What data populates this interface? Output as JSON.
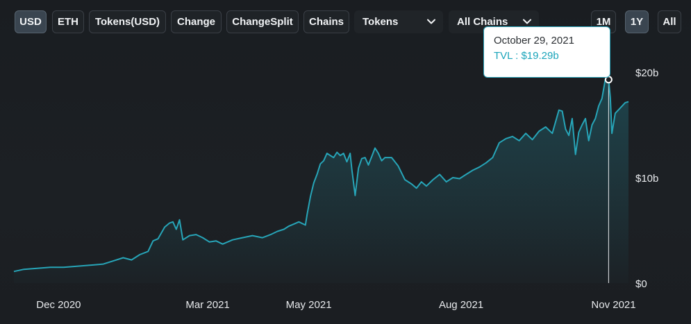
{
  "toolbar": {
    "buttons": [
      {
        "label": "USD",
        "active": true
      },
      {
        "label": "ETH",
        "active": false
      },
      {
        "label": "Tokens(USD)",
        "active": false
      },
      {
        "label": "Change",
        "active": false
      },
      {
        "label": "ChangeSplit",
        "active": false
      },
      {
        "label": "Chains",
        "active": false
      }
    ],
    "tokens_select": "Tokens",
    "chains_select": "All Chains",
    "range_buttons": [
      {
        "label": "1M",
        "active": false
      },
      {
        "label": "1Y",
        "active": true
      },
      {
        "label": "All",
        "active": false
      }
    ]
  },
  "tooltip": {
    "date": "October 29, 2021",
    "value": "TVL : $19.29b"
  },
  "colors": {
    "line": "#27a5b8",
    "accent": "#1aa4ba",
    "background": "#1b1e22"
  },
  "chart_data": {
    "type": "area",
    "title": "",
    "xlabel": "",
    "ylabel": "",
    "unit": "b",
    "ylim": [
      0,
      20
    ],
    "y_ticks": [
      {
        "value": 0,
        "label": "$0"
      },
      {
        "value": 10,
        "label": "$10b"
      },
      {
        "value": 20,
        "label": "$20b"
      }
    ],
    "x_ticks": [
      {
        "date": "2020-12-01",
        "label": "Dec 2020"
      },
      {
        "date": "2021-03-01",
        "label": "Mar 2021"
      },
      {
        "date": "2021-05-01",
        "label": "May 2021"
      },
      {
        "date": "2021-08-01",
        "label": "Aug 2021"
      },
      {
        "date": "2021-11-01",
        "label": "Nov 2021"
      }
    ],
    "grid": false,
    "highlight": {
      "date": "2021-10-29",
      "value": 19.29
    },
    "series": [
      {
        "values": [
          [
            "2020-11-04",
            1.1
          ],
          [
            "2020-11-10",
            1.3
          ],
          [
            "2020-11-18",
            1.4
          ],
          [
            "2020-11-26",
            1.5
          ],
          [
            "2020-12-04",
            1.5
          ],
          [
            "2020-12-12",
            1.6
          ],
          [
            "2020-12-20",
            1.7
          ],
          [
            "2020-12-28",
            1.8
          ],
          [
            "2021-01-03",
            2.1
          ],
          [
            "2021-01-09",
            2.4
          ],
          [
            "2021-01-14",
            2.2
          ],
          [
            "2021-01-19",
            2.7
          ],
          [
            "2021-01-24",
            3.0
          ],
          [
            "2021-01-27",
            4.0
          ],
          [
            "2021-01-30",
            4.2
          ],
          [
            "2021-02-03",
            5.3
          ],
          [
            "2021-02-06",
            5.7
          ],
          [
            "2021-02-08",
            5.8
          ],
          [
            "2021-02-10",
            5.1
          ],
          [
            "2021-02-12",
            6.0
          ],
          [
            "2021-02-14",
            4.1
          ],
          [
            "2021-02-18",
            4.5
          ],
          [
            "2021-02-22",
            4.6
          ],
          [
            "2021-02-26",
            4.3
          ],
          [
            "2021-03-02",
            3.9
          ],
          [
            "2021-03-06",
            4.0
          ],
          [
            "2021-03-10",
            3.7
          ],
          [
            "2021-03-16",
            4.1
          ],
          [
            "2021-03-22",
            4.3
          ],
          [
            "2021-03-28",
            4.5
          ],
          [
            "2021-04-03",
            4.3
          ],
          [
            "2021-04-08",
            4.6
          ],
          [
            "2021-04-12",
            4.9
          ],
          [
            "2021-04-16",
            5.1
          ],
          [
            "2021-04-19",
            5.4
          ],
          [
            "2021-04-22",
            5.6
          ],
          [
            "2021-04-25",
            5.8
          ],
          [
            "2021-04-29",
            5.5
          ],
          [
            "2021-04-30",
            6.5
          ],
          [
            "2021-05-02",
            8.2
          ],
          [
            "2021-05-04",
            9.5
          ],
          [
            "2021-05-06",
            10.3
          ],
          [
            "2021-05-08",
            11.3
          ],
          [
            "2021-05-10",
            11.6
          ],
          [
            "2021-05-12",
            12.3
          ],
          [
            "2021-05-14",
            12.1
          ],
          [
            "2021-05-16",
            11.9
          ],
          [
            "2021-05-18",
            12.4
          ],
          [
            "2021-05-20",
            12.1
          ],
          [
            "2021-05-22",
            12.3
          ],
          [
            "2021-05-24",
            11.5
          ],
          [
            "2021-05-26",
            12.3
          ],
          [
            "2021-05-27",
            10.8
          ],
          [
            "2021-05-29",
            8.3
          ],
          [
            "2021-05-31",
            10.9
          ],
          [
            "2021-06-02",
            11.8
          ],
          [
            "2021-06-04",
            11.9
          ],
          [
            "2021-06-06",
            11.2
          ],
          [
            "2021-06-08",
            12.0
          ],
          [
            "2021-06-10",
            12.8
          ],
          [
            "2021-06-12",
            12.3
          ],
          [
            "2021-06-14",
            11.6
          ],
          [
            "2021-06-16",
            11.9
          ],
          [
            "2021-06-20",
            11.9
          ],
          [
            "2021-06-24",
            11.1
          ],
          [
            "2021-06-28",
            9.8
          ],
          [
            "2021-07-02",
            9.4
          ],
          [
            "2021-07-05",
            9.0
          ],
          [
            "2021-07-08",
            9.6
          ],
          [
            "2021-07-11",
            9.2
          ],
          [
            "2021-07-15",
            9.8
          ],
          [
            "2021-07-19",
            10.3
          ],
          [
            "2021-07-23",
            9.6
          ],
          [
            "2021-07-27",
            10.0
          ],
          [
            "2021-07-31",
            9.9
          ],
          [
            "2021-08-04",
            10.3
          ],
          [
            "2021-08-08",
            10.7
          ],
          [
            "2021-08-12",
            11.0
          ],
          [
            "2021-08-16",
            11.4
          ],
          [
            "2021-08-20",
            11.9
          ],
          [
            "2021-08-24",
            13.3
          ],
          [
            "2021-08-28",
            13.7
          ],
          [
            "2021-09-01",
            13.9
          ],
          [
            "2021-09-05",
            13.5
          ],
          [
            "2021-09-09",
            14.2
          ],
          [
            "2021-09-13",
            13.6
          ],
          [
            "2021-09-17",
            14.4
          ],
          [
            "2021-09-21",
            14.8
          ],
          [
            "2021-09-25",
            14.2
          ],
          [
            "2021-09-29",
            16.4
          ],
          [
            "2021-10-01",
            16.3
          ],
          [
            "2021-10-03",
            14.6
          ],
          [
            "2021-10-05",
            14.0
          ],
          [
            "2021-10-07",
            15.6
          ],
          [
            "2021-10-09",
            12.2
          ],
          [
            "2021-10-11",
            14.3
          ],
          [
            "2021-10-13",
            15.0
          ],
          [
            "2021-10-15",
            15.6
          ],
          [
            "2021-10-17",
            13.5
          ],
          [
            "2021-10-19",
            15.0
          ],
          [
            "2021-10-21",
            15.6
          ],
          [
            "2021-10-23",
            16.8
          ],
          [
            "2021-10-25",
            17.5
          ],
          [
            "2021-10-27",
            19.3
          ],
          [
            "2021-10-28",
            19.1
          ],
          [
            "2021-10-29",
            19.29
          ],
          [
            "2021-10-30",
            17.6
          ],
          [
            "2021-10-31",
            14.2
          ],
          [
            "2021-11-02",
            16.1
          ],
          [
            "2021-11-05",
            16.6
          ],
          [
            "2021-11-08",
            17.1
          ],
          [
            "2021-11-10",
            17.2
          ]
        ]
      }
    ]
  }
}
